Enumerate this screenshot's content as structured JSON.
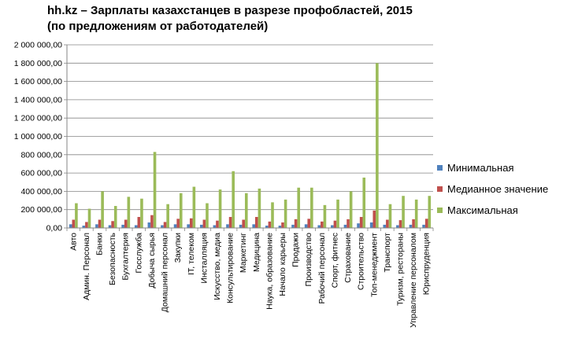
{
  "title": {
    "line1": "hh.kz – Зарплаты казахстанцев в разрезе профобластей, 2015",
    "line2": "(по предложениям от работодателей)"
  },
  "legend": [
    {
      "label": "Минимальная",
      "color": "#4f81bd"
    },
    {
      "label": "Медианное значение",
      "color": "#c0504d"
    },
    {
      "label": "Максимальная",
      "color": "#9bbb59"
    }
  ],
  "chart_data": {
    "type": "bar",
    "title": "hh.kz – Зарплаты казахстанцев в разрезе профобластей, 2015 (по предложениям от работодателей)",
    "ylim": [
      0,
      2000000
    ],
    "yticks": [
      "0,00",
      "200 000,00",
      "400 000,00",
      "600 000,00",
      "800 000,00",
      "1 000 000,00",
      "1 200 000,00",
      "1 400 000,00",
      "1 600 000,00",
      "1 800 000,00",
      "2 000 000,00"
    ],
    "grid": true,
    "legend_position": "right",
    "categories": [
      "Авто",
      "Админ. Персонал",
      "Банки",
      "Безопасность",
      "Бухгалтерия",
      "Госслужба",
      "Добыча сырья",
      "Домашний персонал",
      "Закупки",
      "IT, телеком",
      "Инсталляция",
      "Искусство, медиа",
      "Консультирование",
      "Маркетинг",
      "Медицина",
      "Наука, образование",
      "Начало карьеры",
      "Продажи",
      "Производство",
      "Рабочий персонал",
      "Спорт, фитнес",
      "Страхование",
      "Строительство",
      "Топ-менеджмент",
      "Транспорт",
      "Туризм, рестораны",
      "Управление персоналом",
      "Юриспруденция"
    ],
    "series": [
      {
        "name": "Минимальная",
        "values": [
          40000,
          25000,
          40000,
          30000,
          35000,
          30000,
          60000,
          30000,
          40000,
          40000,
          35000,
          30000,
          40000,
          35000,
          40000,
          25000,
          25000,
          35000,
          40000,
          30000,
          30000,
          35000,
          50000,
          60000,
          35000,
          30000,
          35000,
          35000
        ]
      },
      {
        "name": "Медианное значение",
        "values": [
          90000,
          65000,
          90000,
          75000,
          90000,
          120000,
          140000,
          65000,
          100000,
          105000,
          90000,
          80000,
          120000,
          90000,
          120000,
          70000,
          60000,
          95000,
          100000,
          70000,
          80000,
          95000,
          120000,
          190000,
          90000,
          85000,
          95000,
          100000
        ]
      },
      {
        "name": "Максимальная",
        "values": [
          270000,
          210000,
          400000,
          240000,
          340000,
          320000,
          830000,
          260000,
          380000,
          450000,
          270000,
          420000,
          620000,
          380000,
          430000,
          280000,
          310000,
          440000,
          440000,
          250000,
          310000,
          400000,
          550000,
          1800000,
          260000,
          350000,
          310000,
          350000
        ]
      }
    ]
  }
}
